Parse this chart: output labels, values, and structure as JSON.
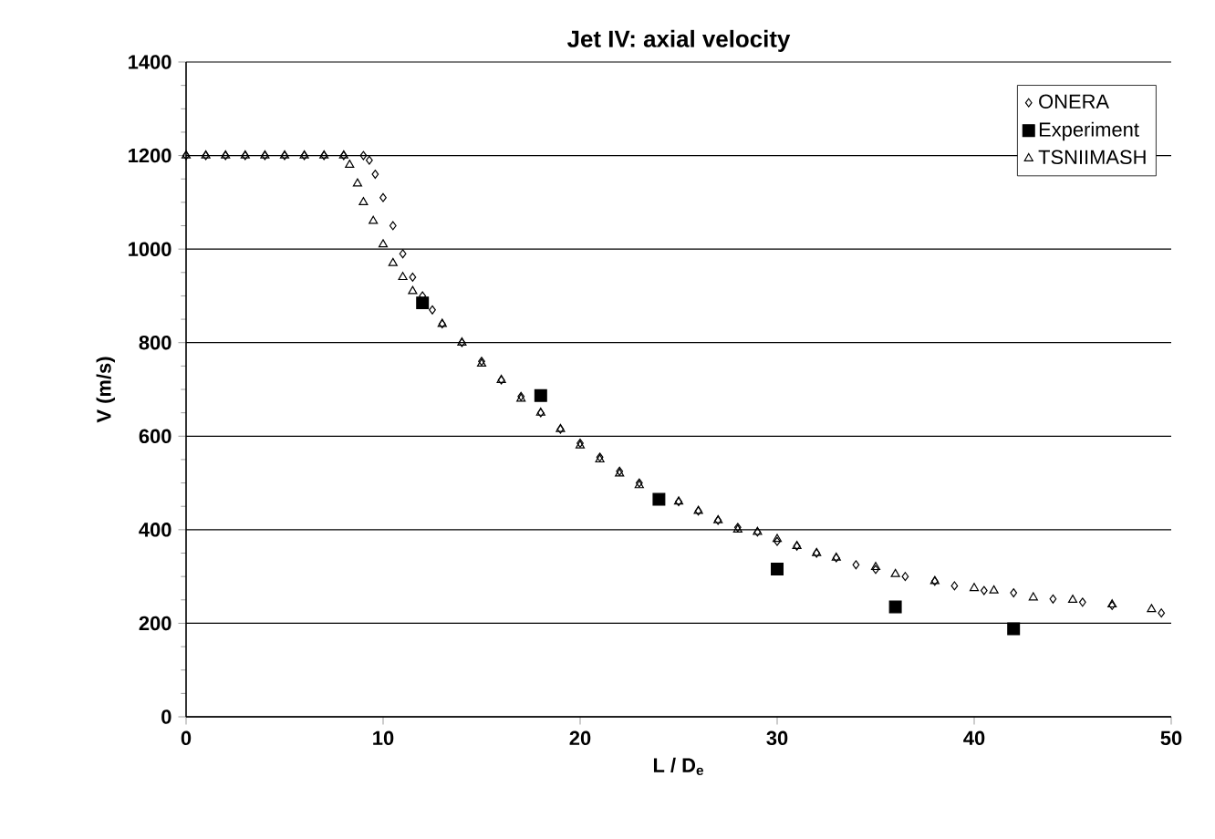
{
  "chart_data": {
    "type": "scatter",
    "title": "Jet IV: axial velocity",
    "xlabel": "L / D$_{e}$",
    "ylabel": "V (m/s)",
    "xlim": [
      0,
      50
    ],
    "xticks": [
      0,
      10,
      20,
      30,
      40,
      50
    ],
    "ylim": [
      0,
      1400
    ],
    "yticks": [
      0,
      200,
      400,
      600,
      800,
      1000,
      1200,
      1400
    ],
    "grid": "y",
    "legend": "top right",
    "series": [
      {
        "name": "ONERA",
        "color": "#000000",
        "marker": "diamond",
        "x": [
          0,
          1,
          2,
          3,
          4,
          5,
          6,
          7,
          8,
          9.0,
          9.3,
          9.6,
          10,
          10.5,
          11,
          11.5,
          12,
          12.5,
          13,
          14,
          15,
          16,
          17,
          18,
          19,
          20,
          21,
          22,
          23,
          24,
          25,
          26,
          27,
          28,
          29,
          30,
          31,
          32,
          33,
          34,
          35,
          36.5,
          38,
          39,
          40.5,
          42,
          44,
          45.5,
          47,
          49.5
        ],
        "values": [
          1200,
          1200,
          1200,
          1200,
          1200,
          1200,
          1200,
          1200,
          1200,
          1200,
          1190,
          1160,
          1110,
          1050,
          990,
          940,
          900,
          870,
          840,
          800,
          760,
          720,
          685,
          650,
          615,
          585,
          555,
          525,
          500,
          null,
          460,
          440,
          420,
          405,
          395,
          375,
          365,
          350,
          340,
          325,
          315,
          300,
          290,
          280,
          270,
          265,
          252,
          245,
          238,
          222
        ]
      },
      {
        "name": "Experiment",
        "color": "#000000",
        "marker": "square",
        "x": [
          12,
          18,
          24,
          30,
          36,
          42
        ],
        "values": [
          885,
          687,
          465,
          316,
          235,
          188
        ]
      },
      {
        "name": "TSNIIMASH",
        "color": "#000000",
        "marker": "triangle",
        "x": [
          0,
          1,
          2,
          3,
          4,
          5,
          6,
          7,
          8.0,
          8.3,
          8.7,
          9,
          9.5,
          10,
          10.5,
          11,
          11.5,
          13,
          14,
          15,
          16,
          17,
          18,
          19,
          20,
          21,
          22,
          23,
          25,
          26,
          27,
          28,
          29,
          30,
          31,
          32,
          33,
          35,
          36,
          38,
          40,
          41,
          43,
          45,
          47,
          49
        ],
        "values": [
          1200,
          1200,
          1200,
          1200,
          1200,
          1200,
          1200,
          1200,
          1200,
          1180,
          1140,
          1100,
          1060,
          1010,
          970,
          940,
          910,
          840,
          800,
          755,
          720,
          680,
          650,
          615,
          580,
          550,
          520,
          495,
          460,
          440,
          420,
          400,
          395,
          380,
          365,
          350,
          340,
          320,
          305,
          290,
          275,
          270,
          255,
          250,
          240,
          230
        ]
      }
    ]
  }
}
